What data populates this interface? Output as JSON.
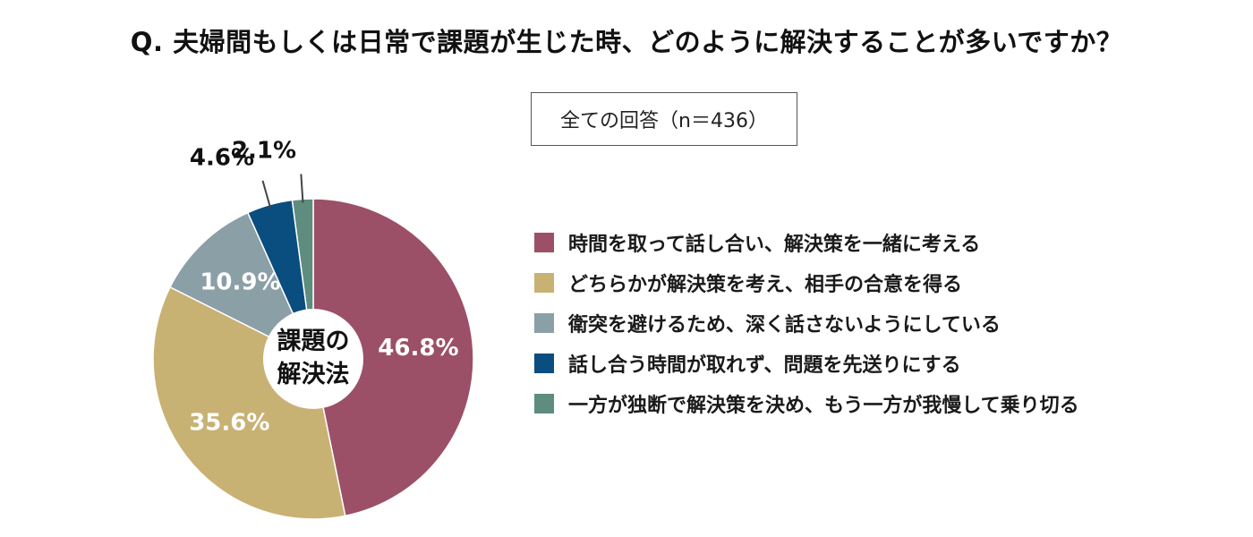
{
  "title": "Q. 夫婦間もしくは日常で課題が生じた時、どのように解決することが多いですか？",
  "sample_label": "全ての回答（n＝436）",
  "chart_data": {
    "type": "pie",
    "center_label": [
      "課題の",
      "解決法"
    ],
    "categories": [
      "時間を取って話し合い、解決策を一緒に考える",
      "どちらかが解決策を考え、相手の合意を得る",
      "衛突を避けるため、深く話さないようにしている",
      "話し合う時間が取れず、問題を先送りにする",
      "一方が独断で解決策を決め、もう一方が我慢して乗り切る"
    ],
    "values": [
      46.8,
      35.6,
      10.9,
      4.6,
      2.1
    ],
    "labels": [
      "46.8%",
      "35.6%",
      "10.9%",
      "4.6%",
      "2.1%"
    ],
    "colors": [
      "#9b5068",
      "#c8b273",
      "#8b9fa7",
      "#0a4d7f",
      "#5e8c7e"
    ],
    "legend_position": "right"
  }
}
